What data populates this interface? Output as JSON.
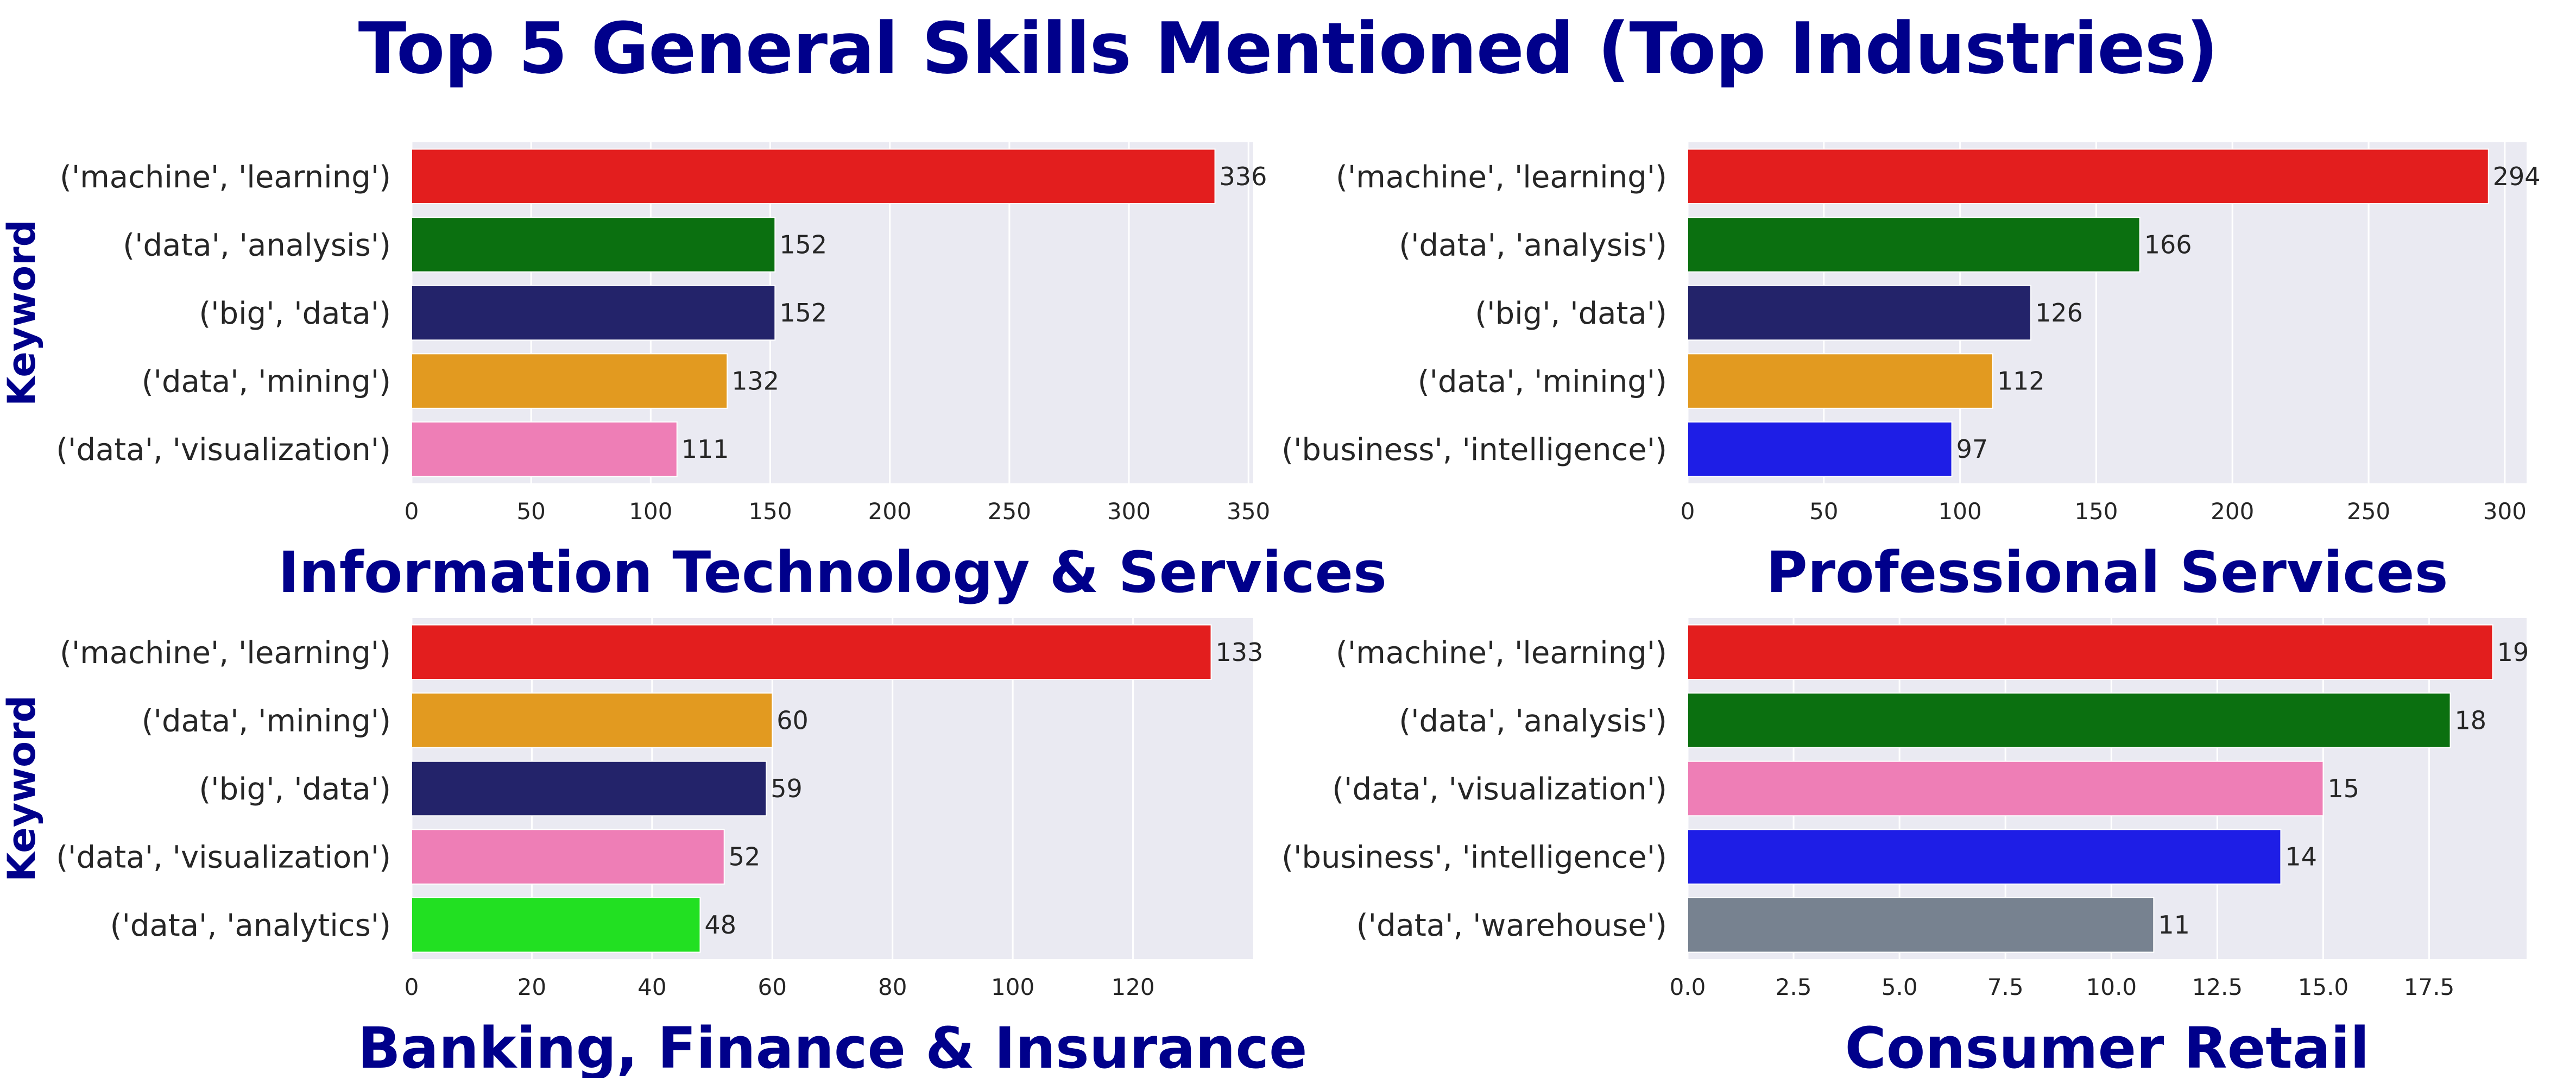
{
  "title": "Top 5 General Skills Mentioned (Top Industries)",
  "colors": {
    "background": "#EAEAF2",
    "grid": "#FFFFFF",
    "title": "#00008B",
    "text": "#262626"
  },
  "chart_data": [
    {
      "type": "bar",
      "orientation": "horizontal",
      "title": "Information Technology & Services",
      "ylabel": "Keyword",
      "xlabel": "",
      "xlim": [
        0,
        352
      ],
      "xticks": [
        0,
        50,
        100,
        150,
        200,
        250,
        300,
        350
      ],
      "grid": true,
      "categories": [
        "('machine', 'learning')",
        "('data', 'analysis')",
        "('big', 'data')",
        "('data', 'mining')",
        "('data', 'visualization')"
      ],
      "values": [
        336,
        152,
        152,
        132,
        111
      ],
      "value_labels": [
        "336",
        "152",
        "152",
        "132",
        "111"
      ],
      "colors": [
        "#E31E1E",
        "#0B7010",
        "#23236A",
        "#E29A20",
        "#EE7EB6"
      ]
    },
    {
      "type": "bar",
      "orientation": "horizontal",
      "title": "Professional Services",
      "ylabel": "",
      "xlabel": "",
      "xlim": [
        0,
        308
      ],
      "xticks": [
        0,
        50,
        100,
        150,
        200,
        250,
        300
      ],
      "grid": true,
      "categories": [
        "('machine', 'learning')",
        "('data', 'analysis')",
        "('big', 'data')",
        "('data', 'mining')",
        "('business', 'intelligence')"
      ],
      "values": [
        294,
        166,
        126,
        112,
        97
      ],
      "value_labels": [
        "294",
        "166",
        "126",
        "112",
        "97"
      ],
      "colors": [
        "#E31E1E",
        "#0B7010",
        "#23236A",
        "#E29A20",
        "#1E1EE6"
      ]
    },
    {
      "type": "bar",
      "orientation": "horizontal",
      "title": "Banking, Finance & Insurance",
      "ylabel": "Keyword",
      "xlabel": "",
      "xlim": [
        0,
        140
      ],
      "xticks": [
        0,
        20,
        40,
        60,
        80,
        100,
        120
      ],
      "grid": true,
      "categories": [
        "('machine', 'learning')",
        "('data', 'mining')",
        "('big', 'data')",
        "('data', 'visualization')",
        "('data', 'analytics')"
      ],
      "values": [
        133,
        60,
        59,
        52,
        48
      ],
      "value_labels": [
        "133",
        "60",
        "59",
        "52",
        "48"
      ],
      "colors": [
        "#E31E1E",
        "#E29A20",
        "#23236A",
        "#EE7EB6",
        "#22E022"
      ]
    },
    {
      "type": "bar",
      "orientation": "horizontal",
      "title": "Consumer Retail",
      "ylabel": "",
      "xlabel": "",
      "xlim": [
        0,
        19.8
      ],
      "xticks": [
        0,
        2.5,
        5,
        7.5,
        10,
        12.5,
        15,
        17.5
      ],
      "xtick_labels": [
        "0.0",
        "2.5",
        "5.0",
        "7.5",
        "10.0",
        "12.5",
        "15.0",
        "17.5"
      ],
      "grid": true,
      "categories": [
        "('machine', 'learning')",
        "('data', 'analysis')",
        "('data', 'visualization')",
        "('business', 'intelligence')",
        "('data', 'warehouse')"
      ],
      "values": [
        19,
        18,
        15,
        14,
        11
      ],
      "value_labels": [
        "19",
        "18",
        "15",
        "14",
        "11"
      ],
      "colors": [
        "#E31E1E",
        "#0B7010",
        "#EE7EB6",
        "#1E1EE6",
        "#778290"
      ]
    }
  ]
}
